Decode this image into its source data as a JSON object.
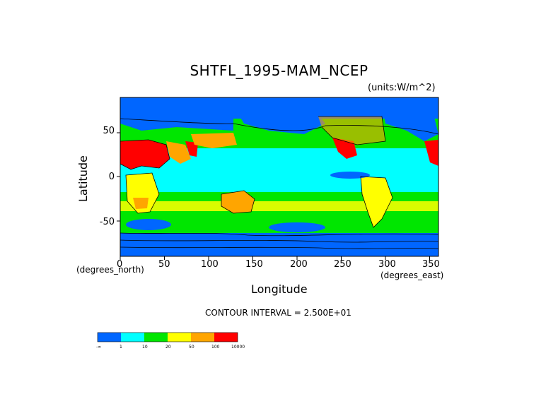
{
  "title": "SHTFL_1995-MAM_NCEP",
  "units_label": "(units:W/m^2)",
  "ylabel": "Latitude",
  "xlabel": "Longitude",
  "x_units": "(degrees_east)",
  "y_units": "(degrees_north)",
  "contour_interval": "CONTOUR INTERVAL = 2.500E+01",
  "x_ticks": [
    "0",
    "50",
    "100",
    "150",
    "200",
    "250",
    "300",
    "350"
  ],
  "y_ticks": [
    "50",
    "0",
    "-50"
  ],
  "colorbar": {
    "colors": [
      "#0066ff",
      "#00ffff",
      "#00e600",
      "#ffff00",
      "#ffa500",
      "#ff0000"
    ],
    "labels": [
      "-∞",
      "1",
      "10",
      "20",
      "50",
      "100",
      "10000"
    ]
  },
  "colors": {
    "ocean_tropic": "#00ffff",
    "midlat": "#00e600",
    "polar": "#0066ff",
    "desert": "#ff0000",
    "arid": "#ffa500",
    "warm": "#ffff00"
  }
}
